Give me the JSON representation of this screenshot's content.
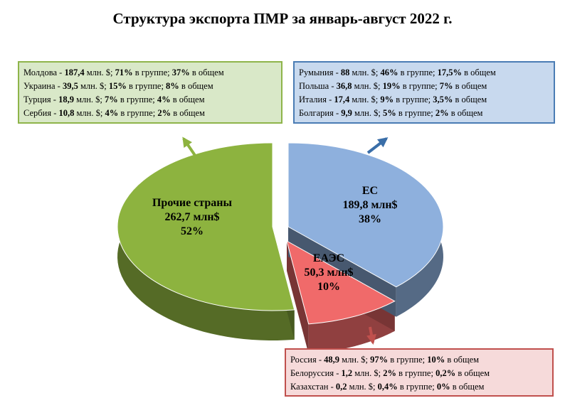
{
  "title": "Структура экспорта ПМР за январь-август 2022 г.",
  "chart_data": {
    "type": "pie",
    "slices": [
      {
        "name": "Прочие страны",
        "value": 262.7,
        "value_text": "262,7 млн$",
        "percent": 52,
        "percent_text": "52%",
        "color": "#8db33f"
      },
      {
        "name": "ЕС",
        "value": 189.8,
        "value_text": "189,8 млн$",
        "percent": 38,
        "percent_text": "38%",
        "color": "#8eb0dd"
      },
      {
        "name": "ЕАЭС",
        "value": 50.3,
        "value_text": "50,3 млн$",
        "percent": 10,
        "percent_text": "10%",
        "color": "#f06a6a"
      }
    ]
  },
  "boxes": {
    "other": {
      "color": "#8eb44a",
      "rows": [
        {
          "country": "Молдова",
          "amount": "187,4",
          "group_pct": "71%",
          "total_pct": "37%"
        },
        {
          "country": "Украина",
          "amount": "39,5",
          "group_pct": "15%",
          "total_pct": "8%"
        },
        {
          "country": "Турция",
          "amount": "18,9",
          "group_pct": "7%",
          "total_pct": "4%"
        },
        {
          "country": "Сербия",
          "amount": "10,8",
          "group_pct": "4%",
          "total_pct": "2%"
        }
      ]
    },
    "eu": {
      "color": "#4a7cb4",
      "rows": [
        {
          "country": "Румыния",
          "amount": "88",
          "group_pct": "46%",
          "total_pct": "17,5%"
        },
        {
          "country": "Польша",
          "amount": "36,8",
          "group_pct": "19%",
          "total_pct": "7%"
        },
        {
          "country": "Италия",
          "amount": "17,4",
          "group_pct": "9%",
          "total_pct": "3,5%"
        },
        {
          "country": "Болгария",
          "amount": "9,9",
          "group_pct": "5%",
          "total_pct": "2%"
        }
      ]
    },
    "eaeu": {
      "color": "#c0504d",
      "rows": [
        {
          "country": "Россия",
          "amount": "48,9",
          "group_pct": "97%",
          "total_pct": "10%"
        },
        {
          "country": "Белоруссия",
          "amount": "1,2",
          "group_pct": "2%",
          "total_pct": "0,2%"
        },
        {
          "country": "Казахстан",
          "amount": "0,2",
          "group_pct": "0,4%",
          "total_pct": "0%"
        }
      ]
    }
  },
  "strings": {
    "unit": "млн. $",
    "in_group": "в группе",
    "in_total": "в общем"
  },
  "arrows": [
    {
      "target": "other",
      "icon": "arrow-up-left-icon",
      "color": "#8db33f"
    },
    {
      "target": "eu",
      "icon": "arrow-up-right-icon",
      "color": "#3a6ea8"
    },
    {
      "target": "eaeu",
      "icon": "arrow-down-icon",
      "color": "#c0504d"
    }
  ]
}
